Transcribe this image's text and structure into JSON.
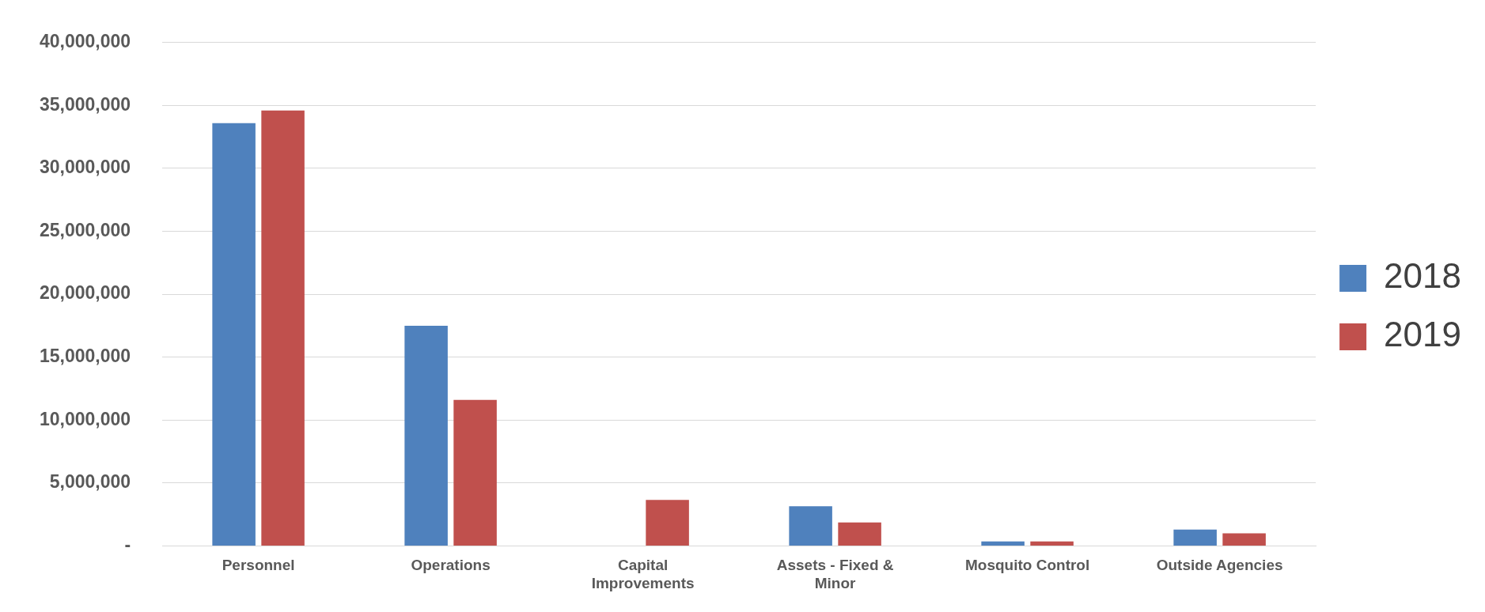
{
  "chart_data": {
    "type": "bar",
    "categories": [
      "Personnel",
      "Operations",
      "Capital Improvements",
      "Assets - Fixed & Minor",
      "Mosquito Control",
      "Outside Agencies"
    ],
    "series": [
      {
        "name": "2018",
        "color": "#4f81bd",
        "values": [
          33600000,
          17500000,
          0,
          3150000,
          360000,
          1290000
        ]
      },
      {
        "name": "2019",
        "color": "#c0504d",
        "values": [
          34600000,
          11600000,
          3650000,
          1860000,
          360000,
          1000000
        ]
      }
    ],
    "ylim": [
      0,
      40000000
    ],
    "yticks": [
      {
        "value": 0,
        "label": "-"
      },
      {
        "value": 5000000,
        "label": "5,000,000"
      },
      {
        "value": 10000000,
        "label": "10,000,000"
      },
      {
        "value": 15000000,
        "label": "15,000,000"
      },
      {
        "value": 20000000,
        "label": "20,000,000"
      },
      {
        "value": 25000000,
        "label": "25,000,000"
      },
      {
        "value": 30000000,
        "label": "30,000,000"
      },
      {
        "value": 35000000,
        "label": "35,000,000"
      },
      {
        "value": 40000000,
        "label": "40,000,000"
      }
    ],
    "grid": "y",
    "legend": "right"
  }
}
